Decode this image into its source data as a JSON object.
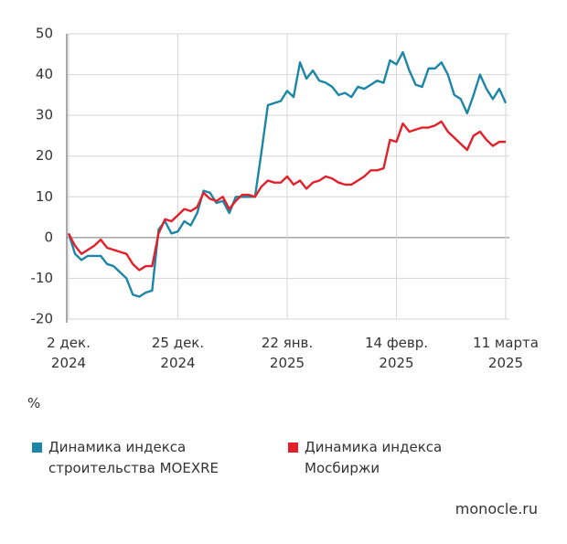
{
  "chart_data": {
    "type": "line",
    "y_unit": "%",
    "source": "monocle.ru",
    "categories": [
      "2 дек. 2024",
      null,
      null,
      null,
      null,
      null,
      null,
      null,
      null,
      null,
      null,
      null,
      null,
      null,
      null,
      null,
      null,
      "25 дек. 2024",
      null,
      null,
      null,
      null,
      null,
      null,
      null,
      null,
      null,
      null,
      null,
      null,
      null,
      null,
      null,
      null,
      "22 янв. 2025",
      null,
      null,
      null,
      null,
      null,
      null,
      null,
      null,
      null,
      null,
      null,
      null,
      null,
      null,
      null,
      null,
      "14 февр. 2025",
      null,
      null,
      null,
      null,
      null,
      null,
      null,
      null,
      null,
      null,
      null,
      null,
      null,
      null,
      null,
      null,
      "11 марта 2025"
    ],
    "series": [
      {
        "name": "Динамика индекса строительства MOEXRE",
        "color": "#1c86a6",
        "values": [
          1,
          -4,
          -5.5,
          -4.5,
          -4.5,
          -4.5,
          -6.5,
          -7,
          -8.5,
          -10,
          -14,
          -14.5,
          -13.5,
          -13,
          2,
          4,
          1,
          1.5,
          4,
          3,
          6,
          11.5,
          11,
          8.5,
          9,
          6,
          10,
          10,
          10,
          10,
          21,
          32.5,
          33,
          33.5,
          36,
          34.5,
          43,
          39,
          41,
          38.5,
          38,
          37,
          35,
          35.5,
          34.5,
          37,
          36.5,
          37.5,
          38.5,
          38,
          43.5,
          42.5,
          45.5,
          41,
          37.5,
          37,
          41.5,
          41.5,
          43,
          40,
          35,
          34,
          30.5,
          35,
          40,
          36.5,
          34,
          36.5,
          33
        ]
      },
      {
        "name": "Динамика индекса Мосбиржи",
        "color": "#e3202a",
        "values": [
          1,
          -2,
          -4,
          -3,
          -2,
          -0.5,
          -2.5,
          -3,
          -3.5,
          -4,
          -6.5,
          -8,
          -7,
          -7,
          1,
          4.5,
          4,
          5.5,
          7,
          6.5,
          7.5,
          11,
          9.5,
          9,
          10,
          7,
          9,
          10.5,
          10.5,
          10,
          12.5,
          14,
          13.5,
          13.5,
          15,
          13,
          14,
          12,
          13.5,
          14,
          15,
          14.5,
          13.5,
          13,
          13,
          14,
          15,
          16.5,
          16.5,
          17,
          24,
          23.5,
          28,
          26,
          26.5,
          27,
          27,
          27.5,
          28.5,
          26,
          24.5,
          23,
          21.5,
          25,
          26,
          24,
          22.5,
          23.5,
          23.5
        ]
      }
    ],
    "ylim": [
      -20,
      50
    ],
    "yticks": [
      -20,
      -10,
      0,
      10,
      20,
      30,
      40,
      50
    ],
    "grid": true
  }
}
